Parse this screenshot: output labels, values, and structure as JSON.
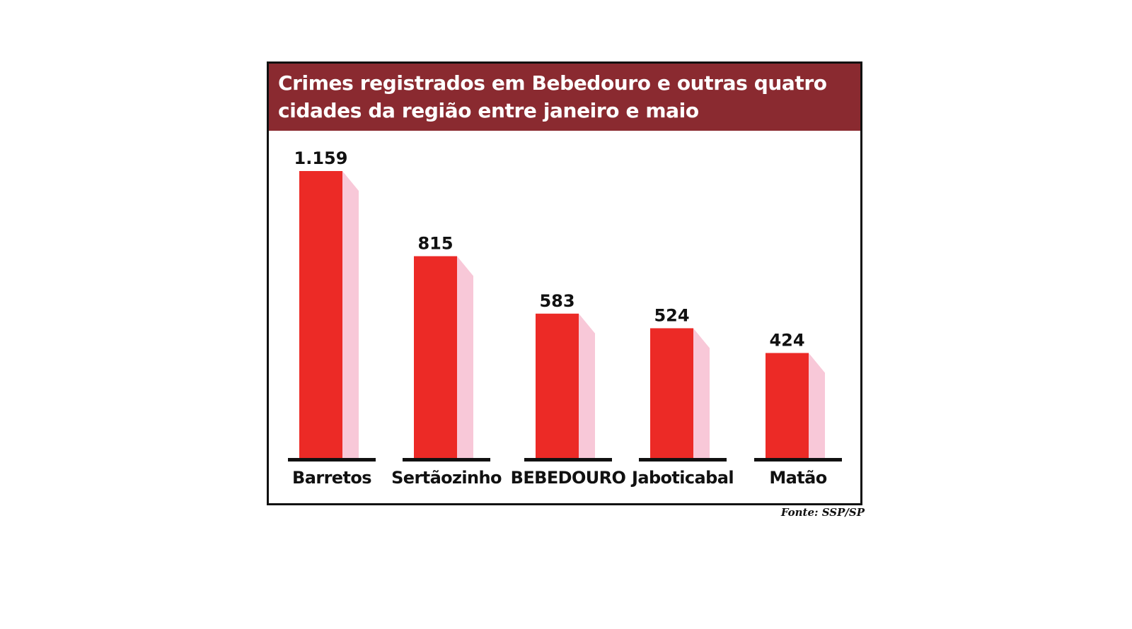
{
  "chart_data": {
    "type": "bar",
    "title": "Crimes registrados em Bebedouro e outras quatro cidades da região entre janeiro e maio",
    "categories": [
      "Barretos",
      "Sertãozinho",
      "BEBEDOURO",
      "Jaboticabal",
      "Matão"
    ],
    "values": [
      1159,
      815,
      583,
      524,
      424
    ],
    "value_labels": [
      "1.159",
      "815",
      "583",
      "524",
      "424"
    ],
    "xlabel": "",
    "ylabel": "",
    "ylim": [
      0,
      1350
    ],
    "grid": false,
    "legend": "none",
    "source": "Fonte: SSP/SP"
  },
  "colors": {
    "header_bg": "#8a2a30",
    "bar_front": "#ec2a26",
    "bar_side": "#f8c8d8",
    "baseline": "#111111",
    "text": "#111111"
  }
}
